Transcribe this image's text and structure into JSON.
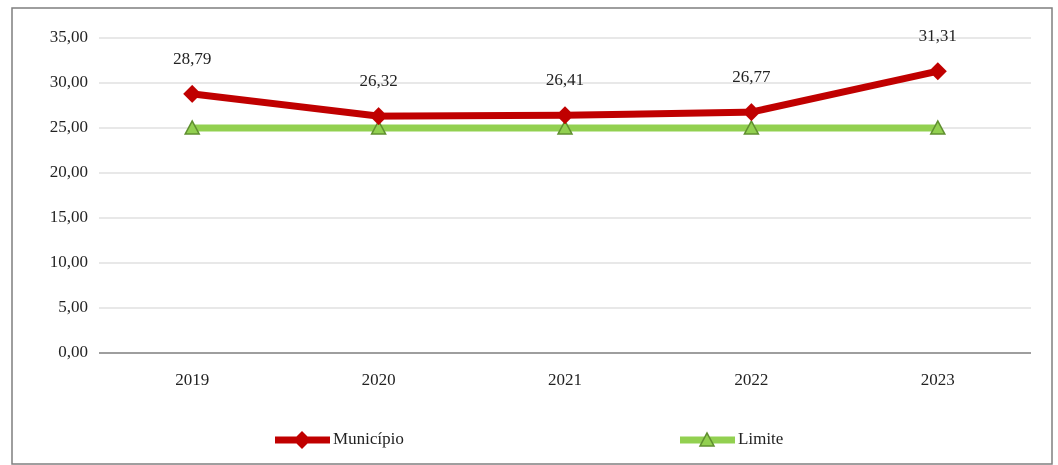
{
  "chart_data": {
    "type": "line",
    "categories": [
      "2019",
      "2020",
      "2021",
      "2022",
      "2023"
    ],
    "series": [
      {
        "name": "Município",
        "color": "#c00000",
        "marker": "diamond",
        "values": [
          28.79,
          26.32,
          26.41,
          26.77,
          31.31
        ],
        "value_labels": [
          "28,79",
          "26,32",
          "26,41",
          "26,77",
          "31,31"
        ]
      },
      {
        "name": "Limite",
        "color": "#92d050",
        "marker": "triangle",
        "values": [
          25,
          25,
          25,
          25,
          25
        ]
      }
    ],
    "ylim": [
      0,
      35
    ],
    "yticks": [
      {
        "value": 0,
        "label": "0,00"
      },
      {
        "value": 5,
        "label": "5,00"
      },
      {
        "value": 10,
        "label": "10,00"
      },
      {
        "value": 15,
        "label": "15,00"
      },
      {
        "value": 20,
        "label": "20,00"
      },
      {
        "value": 25,
        "label": "25,00"
      },
      {
        "value": 30,
        "label": "30,00"
      },
      {
        "value": 35,
        "label": "35,00"
      }
    ],
    "grid": true,
    "legend": "bottom"
  }
}
